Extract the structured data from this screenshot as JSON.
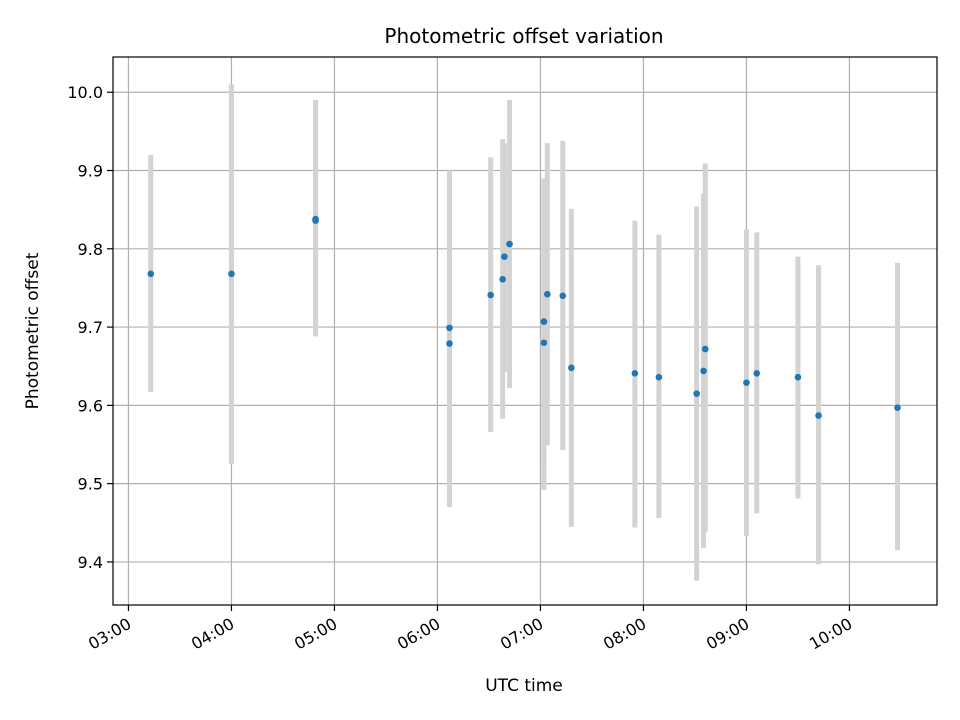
{
  "chart_data": {
    "type": "scatter",
    "title": "Photometric offset variation",
    "xlabel": "UTC time",
    "ylabel": "Photometric offset",
    "x_unit": "time of day (HH:MM)",
    "xlim": [
      "02:51",
      "10:51"
    ],
    "ylim": [
      9.345,
      10.045
    ],
    "x_ticks": [
      "03:00",
      "04:00",
      "05:00",
      "06:00",
      "07:00",
      "08:00",
      "09:00",
      "10:00"
    ],
    "y_ticks": [
      "9.4",
      "9.5",
      "9.6",
      "9.7",
      "9.8",
      "9.9",
      "10.0"
    ],
    "grid": true,
    "marker_color": "#1f77b4",
    "errorbar_color": "#d3d3d3",
    "points": [
      {
        "x": "03:13",
        "y": 9.768,
        "ylow": 9.617,
        "yhigh": 9.92
      },
      {
        "x": "04:00",
        "y": 9.768,
        "ylow": 9.525,
        "yhigh": 10.01
      },
      {
        "x": "04:49",
        "y": 9.838,
        "ylow": 9.688,
        "yhigh": 9.99
      },
      {
        "x": "04:49",
        "y": 9.836,
        "ylow": 9.688,
        "yhigh": 9.985
      },
      {
        "x": "06:07",
        "y": 9.699,
        "ylow": 9.5,
        "yhigh": 9.9
      },
      {
        "x": "06:07",
        "y": 9.679,
        "ylow": 9.47,
        "yhigh": 9.895
      },
      {
        "x": "06:31",
        "y": 9.741,
        "ylow": 9.566,
        "yhigh": 9.917
      },
      {
        "x": "06:38",
        "y": 9.761,
        "ylow": 9.583,
        "yhigh": 9.94
      },
      {
        "x": "06:39",
        "y": 9.79,
        "ylow": 9.643,
        "yhigh": 9.935
      },
      {
        "x": "06:42",
        "y": 9.806,
        "ylow": 9.622,
        "yhigh": 9.99
      },
      {
        "x": "07:02",
        "y": 9.68,
        "ylow": 9.492,
        "yhigh": 9.89
      },
      {
        "x": "07:02",
        "y": 9.707,
        "ylow": 9.525,
        "yhigh": 9.88
      },
      {
        "x": "07:04",
        "y": 9.742,
        "ylow": 9.549,
        "yhigh": 9.935
      },
      {
        "x": "07:13",
        "y": 9.74,
        "ylow": 9.543,
        "yhigh": 9.938
      },
      {
        "x": "07:18",
        "y": 9.648,
        "ylow": 9.445,
        "yhigh": 9.851
      },
      {
        "x": "07:55",
        "y": 9.641,
        "ylow": 9.444,
        "yhigh": 9.836
      },
      {
        "x": "08:09",
        "y": 9.636,
        "ylow": 9.456,
        "yhigh": 9.818
      },
      {
        "x": "08:31",
        "y": 9.615,
        "ylow": 9.376,
        "yhigh": 9.854
      },
      {
        "x": "08:35",
        "y": 9.644,
        "ylow": 9.418,
        "yhigh": 9.87
      },
      {
        "x": "08:36",
        "y": 9.672,
        "ylow": 9.438,
        "yhigh": 9.909
      },
      {
        "x": "09:00",
        "y": 9.629,
        "ylow": 9.433,
        "yhigh": 9.825
      },
      {
        "x": "09:06",
        "y": 9.641,
        "ylow": 9.462,
        "yhigh": 9.821
      },
      {
        "x": "09:30",
        "y": 9.636,
        "ylow": 9.481,
        "yhigh": 9.79
      },
      {
        "x": "09:42",
        "y": 9.587,
        "ylow": 9.397,
        "yhigh": 9.779
      },
      {
        "x": "10:28",
        "y": 9.597,
        "ylow": 9.415,
        "yhigh": 9.782
      }
    ]
  }
}
